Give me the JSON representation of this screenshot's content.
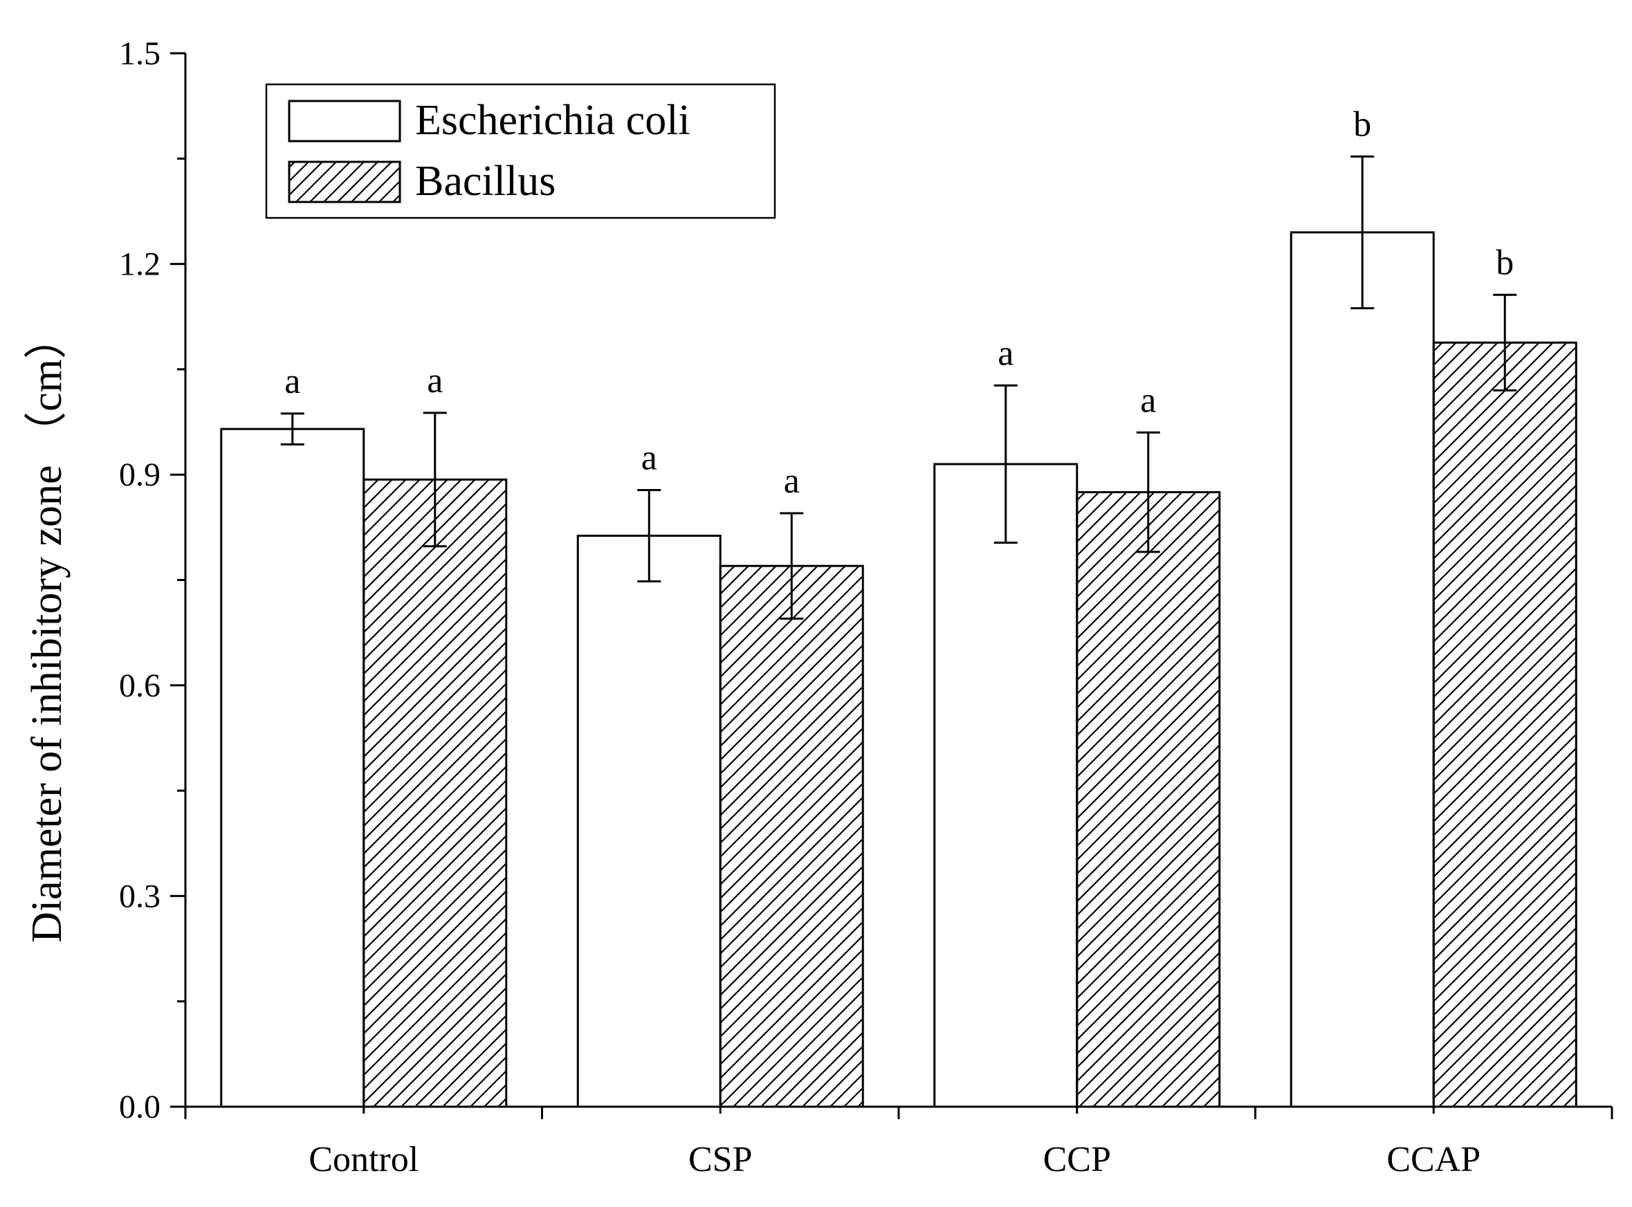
{
  "chart_data": {
    "type": "bar",
    "title": "",
    "xlabel": "",
    "ylabel": "Diameter of inhibitory zone （cm）",
    "ylim": [
      0,
      1.5
    ],
    "yticks": [
      0.0,
      0.3,
      0.6,
      0.9,
      1.2,
      1.5
    ],
    "ytick_labels": [
      "0.0",
      "0.3",
      "0.6",
      "0.9",
      "1.2",
      "1.5"
    ],
    "categories": [
      "Control",
      "CSP",
      "CCP",
      "CCAP"
    ],
    "series": [
      {
        "name": "Escherichia coli",
        "pattern": "none",
        "values": [
          0.965,
          0.813,
          0.915,
          1.245
        ],
        "errors": [
          0.022,
          0.065,
          0.112,
          0.108
        ],
        "significance": [
          "a",
          "a",
          "a",
          "b"
        ]
      },
      {
        "name": "Bacillus",
        "pattern": "hatched",
        "values": [
          0.893,
          0.77,
          0.875,
          1.088
        ],
        "errors": [
          0.095,
          0.075,
          0.085,
          0.068
        ],
        "significance": [
          "a",
          "a",
          "a",
          "b"
        ]
      }
    ],
    "legend": {
      "position": "top-left",
      "entries": [
        "Escherichia coli",
        "Bacillus"
      ]
    },
    "grid": false,
    "colors": {
      "bar_fill": "#ffffff",
      "stroke": "#000000",
      "background": "#ffffff"
    }
  }
}
